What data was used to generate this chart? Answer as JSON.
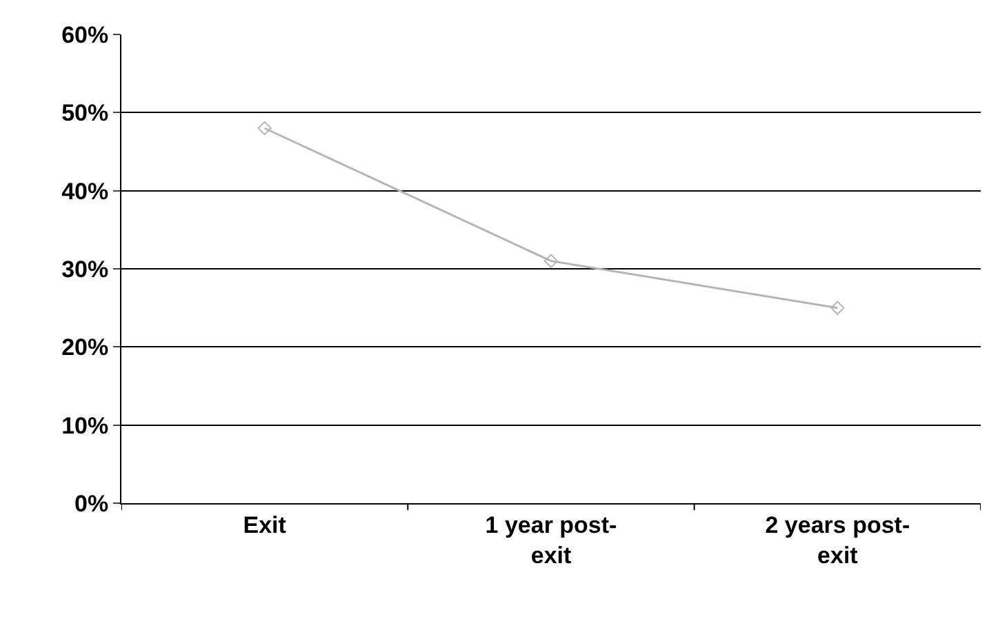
{
  "chart_data": {
    "type": "line",
    "categories": [
      "Exit",
      "1 year post-exit",
      "2 years post-exit"
    ],
    "series": [
      {
        "color": "#b4b4b4",
        "values": [
          48,
          31,
          25
        ]
      }
    ],
    "ylim": [
      0,
      60
    ],
    "yticks": [
      {
        "value": 0,
        "label": "0%"
      },
      {
        "value": 10,
        "label": "10%"
      },
      {
        "value": 20,
        "label": "20%"
      },
      {
        "value": 30,
        "label": "30%"
      },
      {
        "value": 40,
        "label": "40%"
      },
      {
        "value": 50,
        "label": "50%"
      },
      {
        "value": 60,
        "label": "60%"
      }
    ],
    "grid": "y",
    "marker": "diamond",
    "line_style": "solid"
  }
}
